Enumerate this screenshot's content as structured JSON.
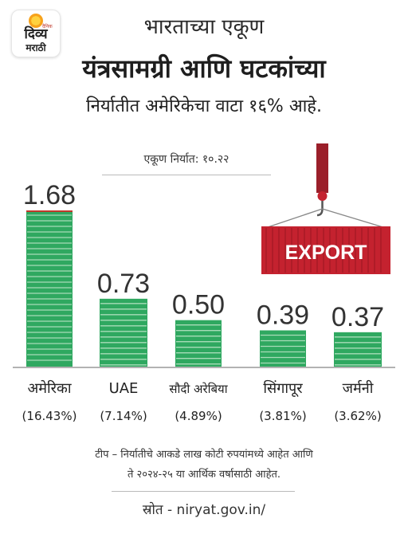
{
  "logo": {
    "line1": "दिव्य",
    "line2": "मराठी",
    "tiny": "दैनिक"
  },
  "header": {
    "line1": "भारताच्या एकूण",
    "line2": "यंत्रसामग्री आणि घटकांच्या",
    "line3": "निर्यातीत अमेरिकेचा वाटा १६% आहे."
  },
  "chart_data": {
    "type": "bar",
    "total_label": "एकूण निर्यात: १०.२२",
    "categories": [
      "अमेरिका",
      "UAE",
      "सौदी अरेबिया",
      "सिंगापूर",
      "जर्मनी"
    ],
    "values": [
      1.68,
      0.73,
      0.5,
      0.39,
      0.37
    ],
    "value_labels": [
      "1.68",
      "0.73",
      "0.50",
      "0.39",
      "0.37"
    ],
    "shares": [
      "(16.43%)",
      "(7.14%)",
      "(4.89%)",
      "(3.81%)",
      "(3.62%)"
    ],
    "ylim": [
      0,
      1.68
    ],
    "bar_color": "#2fa860",
    "stripe_color": "#a8dcb8",
    "top_accent_color": "#c0392b"
  },
  "export_sign": {
    "label": "EXPORT",
    "color": "#c4222f"
  },
  "footnote": {
    "line1": "टीप – निर्यातीचे आकडे लाख कोटी रुपयांमध्ये आहेत आणि",
    "line2": "ते २०२४-२५ या आर्थिक वर्षासाठी आहेत."
  },
  "source": "स्रोत - niryat.gov.in/"
}
